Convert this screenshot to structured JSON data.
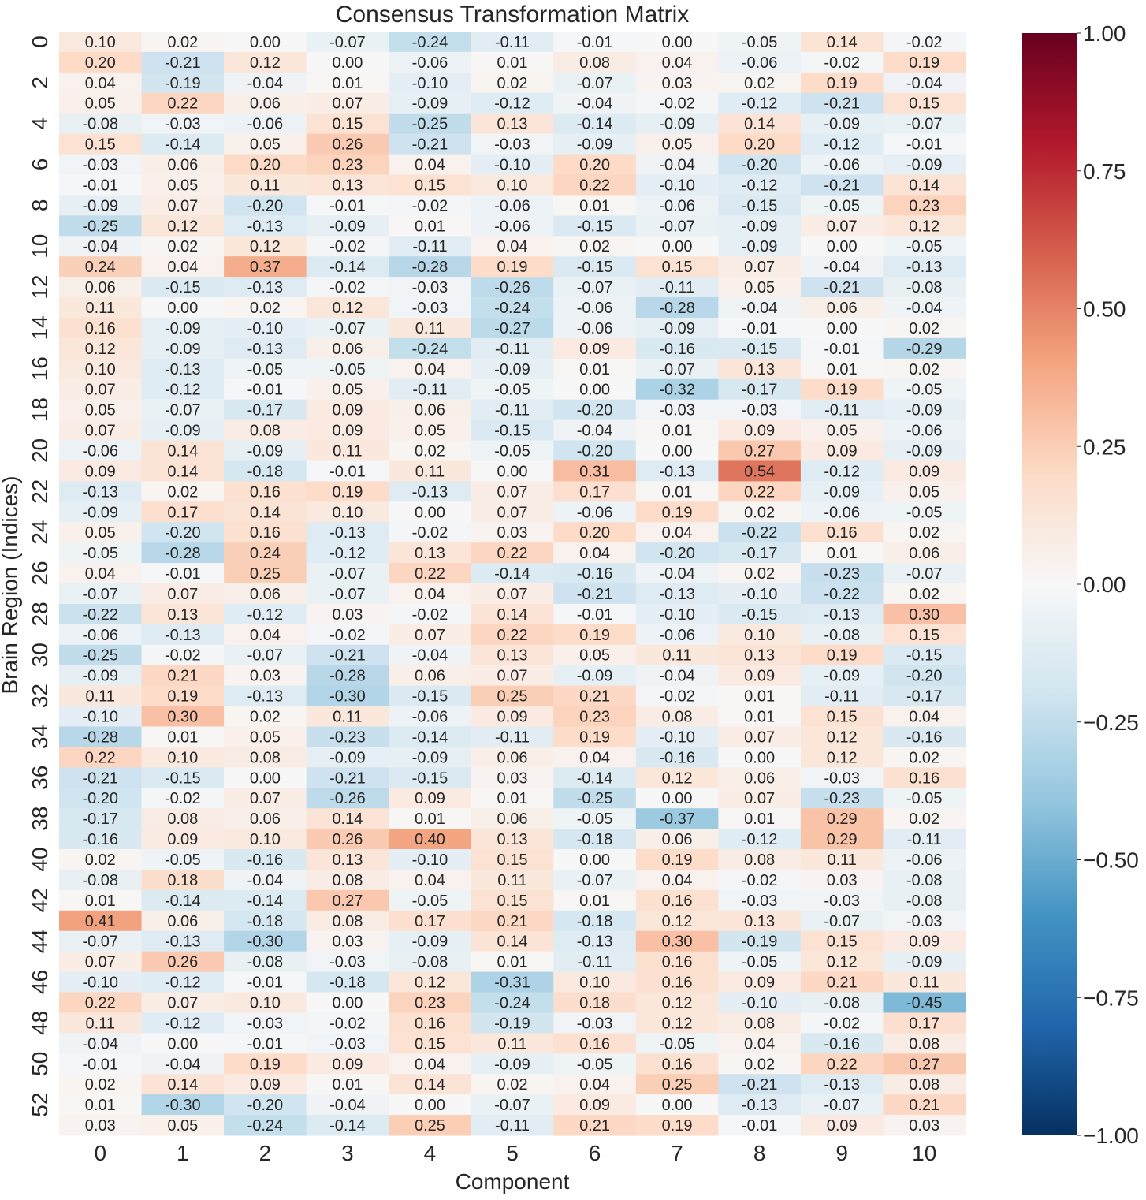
{
  "chart_data": {
    "type": "heatmap",
    "title": "Consensus Transformation Matrix",
    "xlabel": "Component",
    "ylabel": "Brain Region (Indices)",
    "x_categories": [
      "0",
      "1",
      "2",
      "3",
      "4",
      "5",
      "6",
      "7",
      "8",
      "9",
      "10"
    ],
    "y_categories": [
      "0",
      "1",
      "2",
      "3",
      "4",
      "5",
      "6",
      "7",
      "8",
      "9",
      "10",
      "11",
      "12",
      "13",
      "14",
      "15",
      "16",
      "17",
      "18",
      "19",
      "20",
      "21",
      "22",
      "23",
      "24",
      "25",
      "26",
      "27",
      "28",
      "29",
      "30",
      "31",
      "32",
      "33",
      "34",
      "35",
      "36",
      "37",
      "38",
      "39",
      "40",
      "41",
      "42",
      "43",
      "44",
      "45",
      "46",
      "47",
      "48",
      "49",
      "50",
      "51",
      "52",
      "53"
    ],
    "y_tick_labels_shown": [
      "0",
      "2",
      "4",
      "6",
      "8",
      "10",
      "12",
      "14",
      "16",
      "18",
      "20",
      "22",
      "24",
      "26",
      "28",
      "30",
      "32",
      "34",
      "36",
      "38",
      "40",
      "42",
      "44",
      "46",
      "48",
      "50",
      "52"
    ],
    "colormap": "RdBu_r",
    "vmin": -1.0,
    "vmax": 1.0,
    "colorbar_ticks": [
      "1.00",
      "0.75",
      "0.50",
      "0.25",
      "0.00",
      "−0.25",
      "−0.50",
      "−0.75",
      "−1.00"
    ],
    "colorbar_tick_values": [
      1.0,
      0.75,
      0.5,
      0.25,
      0.0,
      -0.25,
      -0.5,
      -0.75,
      -1.0
    ],
    "annotate": true,
    "value_format": "0.00",
    "values": [
      [
        0.1,
        0.02,
        0.0,
        -0.07,
        -0.24,
        -0.11,
        -0.01,
        0.0,
        -0.05,
        0.14,
        -0.02
      ],
      [
        0.2,
        -0.21,
        0.12,
        -0.0,
        -0.06,
        0.01,
        0.08,
        0.04,
        -0.06,
        -0.02,
        0.19
      ],
      [
        0.04,
        -0.19,
        -0.04,
        0.01,
        -0.1,
        0.02,
        -0.07,
        0.03,
        0.02,
        0.19,
        -0.04
      ],
      [
        0.05,
        0.22,
        0.06,
        0.07,
        -0.09,
        -0.12,
        -0.04,
        -0.02,
        -0.12,
        -0.21,
        0.15
      ],
      [
        -0.08,
        -0.03,
        -0.06,
        0.15,
        -0.25,
        0.13,
        -0.14,
        -0.09,
        0.14,
        -0.09,
        -0.07
      ],
      [
        0.15,
        -0.14,
        0.05,
        0.26,
        -0.21,
        -0.03,
        -0.09,
        0.05,
        0.2,
        -0.12,
        -0.01
      ],
      [
        -0.03,
        0.06,
        0.2,
        0.23,
        0.04,
        -0.1,
        0.2,
        -0.04,
        -0.2,
        -0.06,
        -0.09
      ],
      [
        -0.01,
        0.05,
        0.11,
        0.13,
        0.15,
        0.1,
        0.22,
        -0.1,
        -0.12,
        -0.21,
        0.14
      ],
      [
        -0.09,
        0.07,
        -0.2,
        -0.01,
        -0.02,
        -0.06,
        0.01,
        -0.06,
        -0.15,
        -0.05,
        0.23
      ],
      [
        -0.25,
        0.12,
        -0.13,
        -0.09,
        0.01,
        -0.06,
        -0.15,
        -0.07,
        -0.09,
        0.07,
        0.12
      ],
      [
        -0.04,
        0.02,
        0.12,
        -0.02,
        -0.11,
        0.04,
        0.02,
        0.0,
        -0.09,
        -0.0,
        -0.05
      ],
      [
        0.24,
        0.04,
        0.37,
        -0.14,
        -0.28,
        0.19,
        -0.15,
        0.15,
        0.07,
        -0.04,
        -0.13
      ],
      [
        0.06,
        -0.15,
        -0.13,
        -0.02,
        -0.03,
        -0.26,
        -0.07,
        -0.11,
        0.05,
        -0.21,
        -0.08
      ],
      [
        0.11,
        0.0,
        0.02,
        0.12,
        -0.03,
        -0.24,
        -0.06,
        -0.28,
        -0.04,
        0.06,
        -0.04
      ],
      [
        0.16,
        -0.09,
        -0.1,
        -0.07,
        0.11,
        -0.27,
        -0.06,
        -0.09,
        -0.01,
        0.0,
        0.02
      ],
      [
        0.12,
        -0.09,
        -0.13,
        0.06,
        -0.24,
        -0.11,
        0.09,
        -0.16,
        -0.15,
        -0.01,
        -0.29
      ],
      [
        0.1,
        -0.13,
        -0.05,
        -0.05,
        0.04,
        -0.09,
        0.01,
        -0.07,
        0.13,
        0.01,
        0.02
      ],
      [
        0.07,
        -0.12,
        -0.01,
        0.05,
        -0.11,
        -0.05,
        -0.0,
        -0.32,
        -0.17,
        0.19,
        -0.05
      ],
      [
        0.05,
        -0.07,
        -0.17,
        0.09,
        0.06,
        -0.11,
        -0.2,
        -0.03,
        -0.03,
        -0.11,
        -0.09
      ],
      [
        0.07,
        -0.09,
        0.08,
        0.09,
        0.05,
        -0.15,
        -0.04,
        0.01,
        0.09,
        0.05,
        -0.06
      ],
      [
        -0.06,
        0.14,
        -0.09,
        0.11,
        0.02,
        -0.05,
        -0.2,
        -0.0,
        0.27,
        0.09,
        -0.09
      ],
      [
        0.09,
        0.14,
        -0.18,
        -0.01,
        0.11,
        -0.0,
        0.31,
        -0.13,
        0.54,
        -0.12,
        0.09
      ],
      [
        -0.13,
        0.02,
        0.16,
        0.19,
        -0.13,
        0.07,
        0.17,
        0.01,
        0.22,
        -0.09,
        0.05
      ],
      [
        -0.09,
        0.17,
        0.14,
        0.1,
        -0.0,
        0.07,
        -0.06,
        0.19,
        0.02,
        -0.06,
        -0.05
      ],
      [
        0.05,
        -0.2,
        0.16,
        -0.13,
        -0.02,
        0.03,
        0.2,
        0.04,
        -0.22,
        0.16,
        0.02
      ],
      [
        -0.05,
        -0.28,
        0.24,
        -0.12,
        0.13,
        0.22,
        0.04,
        -0.2,
        -0.17,
        0.01,
        0.06
      ],
      [
        0.04,
        -0.01,
        0.25,
        -0.07,
        0.22,
        -0.14,
        -0.16,
        -0.04,
        0.02,
        -0.23,
        -0.07
      ],
      [
        -0.07,
        0.07,
        0.06,
        -0.07,
        0.04,
        0.07,
        -0.21,
        -0.13,
        -0.1,
        -0.22,
        0.02
      ],
      [
        -0.22,
        0.13,
        -0.12,
        0.03,
        -0.02,
        0.14,
        -0.01,
        -0.1,
        -0.15,
        -0.13,
        0.3
      ],
      [
        -0.06,
        -0.13,
        0.04,
        -0.02,
        0.07,
        0.22,
        0.19,
        -0.06,
        0.1,
        -0.08,
        0.15
      ],
      [
        -0.25,
        -0.02,
        -0.07,
        -0.21,
        -0.04,
        0.13,
        0.05,
        0.11,
        0.13,
        0.19,
        -0.15
      ],
      [
        -0.09,
        0.21,
        0.03,
        -0.28,
        0.06,
        0.07,
        -0.09,
        -0.04,
        0.09,
        -0.09,
        -0.2
      ],
      [
        0.11,
        0.19,
        -0.13,
        -0.3,
        -0.15,
        0.25,
        0.21,
        -0.02,
        0.01,
        -0.11,
        -0.17
      ],
      [
        -0.1,
        0.3,
        0.02,
        0.11,
        -0.06,
        0.09,
        0.23,
        0.08,
        0.01,
        0.15,
        0.04
      ],
      [
        -0.28,
        0.01,
        0.05,
        -0.23,
        -0.14,
        -0.11,
        0.19,
        -0.1,
        0.07,
        0.12,
        -0.16
      ],
      [
        0.22,
        0.1,
        0.08,
        -0.09,
        -0.09,
        0.06,
        0.04,
        -0.16,
        0.0,
        0.12,
        0.02
      ],
      [
        -0.21,
        -0.15,
        0.0,
        -0.21,
        -0.15,
        0.03,
        -0.14,
        0.12,
        0.06,
        -0.03,
        0.16
      ],
      [
        -0.2,
        -0.02,
        0.07,
        -0.26,
        0.09,
        0.01,
        -0.25,
        -0.0,
        0.07,
        -0.23,
        -0.05
      ],
      [
        -0.17,
        0.08,
        0.06,
        0.14,
        0.01,
        0.06,
        -0.05,
        -0.37,
        0.01,
        0.29,
        0.02
      ],
      [
        -0.16,
        0.09,
        0.1,
        0.26,
        0.4,
        0.13,
        -0.18,
        0.06,
        -0.12,
        0.29,
        -0.11
      ],
      [
        0.02,
        -0.05,
        -0.16,
        0.13,
        -0.1,
        0.15,
        -0.0,
        0.19,
        0.08,
        0.11,
        -0.06
      ],
      [
        -0.08,
        0.18,
        -0.04,
        0.08,
        0.04,
        0.11,
        -0.07,
        0.04,
        -0.02,
        0.03,
        -0.08
      ],
      [
        0.01,
        -0.14,
        -0.14,
        0.27,
        -0.05,
        0.15,
        0.01,
        0.16,
        -0.03,
        -0.03,
        -0.08
      ],
      [
        0.41,
        0.06,
        -0.18,
        0.08,
        0.17,
        0.21,
        -0.18,
        0.12,
        0.13,
        -0.07,
        -0.03
      ],
      [
        -0.07,
        -0.13,
        -0.3,
        0.03,
        -0.09,
        0.14,
        -0.13,
        0.3,
        -0.19,
        0.15,
        0.09
      ],
      [
        0.07,
        0.26,
        -0.08,
        -0.03,
        -0.08,
        0.01,
        -0.11,
        0.16,
        -0.05,
        0.12,
        -0.09
      ],
      [
        -0.1,
        -0.12,
        -0.01,
        -0.18,
        0.12,
        -0.31,
        0.1,
        0.16,
        0.09,
        0.21,
        0.11
      ],
      [
        0.22,
        0.07,
        0.1,
        0.0,
        0.23,
        -0.24,
        0.18,
        0.12,
        -0.1,
        -0.08,
        -0.45
      ],
      [
        0.11,
        -0.12,
        -0.03,
        -0.02,
        0.16,
        -0.19,
        -0.03,
        0.12,
        0.08,
        -0.02,
        0.17
      ],
      [
        -0.04,
        0.0,
        -0.01,
        -0.03,
        0.15,
        0.11,
        0.16,
        -0.05,
        0.04,
        -0.16,
        0.08
      ],
      [
        -0.01,
        -0.04,
        0.19,
        0.09,
        0.04,
        -0.09,
        -0.05,
        0.16,
        0.02,
        0.22,
        0.27
      ],
      [
        0.02,
        0.14,
        0.09,
        0.01,
        0.14,
        0.02,
        0.04,
        0.25,
        -0.21,
        -0.13,
        0.08
      ],
      [
        0.01,
        -0.3,
        -0.2,
        -0.04,
        -0.0,
        -0.07,
        0.09,
        0.0,
        -0.13,
        -0.07,
        0.21
      ],
      [
        0.03,
        0.05,
        -0.24,
        -0.14,
        0.25,
        -0.11,
        0.21,
        0.19,
        -0.01,
        0.09,
        0.03
      ]
    ]
  }
}
